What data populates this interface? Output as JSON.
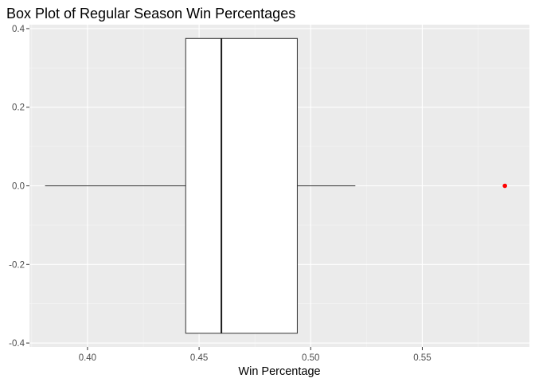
{
  "chart_data": {
    "type": "boxplot",
    "title": "Box Plot of Regular Season Win Percentages",
    "xlabel": "Win Percentage",
    "ylabel": "",
    "xlim": [
      0.374,
      0.598
    ],
    "ylim": [
      -0.41,
      0.41
    ],
    "x_ticks": [
      0.4,
      0.45,
      0.5,
      0.55
    ],
    "x_tick_labels": [
      "0.40",
      "0.45",
      "0.50",
      "0.55"
    ],
    "y_ticks": [
      -0.4,
      -0.2,
      0.0,
      0.2,
      0.4
    ],
    "y_tick_labels": [
      "-0.4",
      "-0.2",
      "0.0",
      "0.2",
      "0.4"
    ],
    "box": {
      "whisker_low": 0.381,
      "q1": 0.444,
      "median": 0.46,
      "q3": 0.494,
      "whisker_high": 0.52,
      "box_y_range": [
        -0.375,
        0.375
      ],
      "y_center": 0.0
    },
    "outliers": [
      {
        "x": 0.587,
        "y": 0.0
      }
    ],
    "grid": true,
    "legend": "none",
    "colors": {
      "panel_background": "#ebebeb",
      "grid_major": "#ffffff",
      "grid_minor": "#f5f5f5",
      "box_fill": "#ffffff",
      "box_line": "#333333",
      "outlier": "#ff0000"
    }
  }
}
